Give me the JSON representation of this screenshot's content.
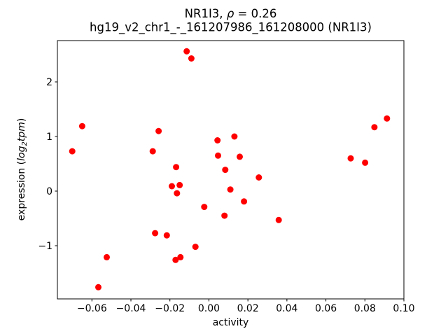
{
  "chart_data": {
    "type": "scatter",
    "title": {
      "gene": "NR1I3, ",
      "rho": "ρ",
      "rho_value": " = 0.26"
    },
    "subtitle": "hg19_v2_chr1_-_161207986_161208000 (NR1I3)",
    "xlabel": "activity",
    "ylabel": {
      "prefix": "expression (",
      "log": "log",
      "sub": "2",
      "tpm": "tpm",
      "suffix": ")"
    },
    "xlim": [
      -0.0777,
      0.1
    ],
    "ylim": [
      -1.9744,
      2.7564
    ],
    "xtick_values": [
      -0.06,
      -0.04,
      -0.02,
      0.0,
      0.02,
      0.04,
      0.06,
      0.08,
      0.1
    ],
    "xtick_labels": [
      "−0.06",
      "−0.04",
      "−0.02",
      "0.00",
      "0.02",
      "0.04",
      "0.06",
      "0.08",
      "0.10"
    ],
    "ytick_values": [
      -1,
      0,
      1,
      2
    ],
    "ytick_labels": [
      "−1",
      "0",
      "1",
      "2"
    ],
    "grid": false,
    "legend": null,
    "marker": {
      "color": "#ff0000",
      "radius_px": 4.5
    },
    "points": [
      [
        -0.0114,
        2.56
      ],
      [
        -0.009,
        2.43
      ],
      [
        -0.065,
        1.19
      ],
      [
        -0.0701,
        0.73
      ],
      [
        -0.0258,
        1.1
      ],
      [
        -0.0288,
        0.73
      ],
      [
        0.0044,
        0.93
      ],
      [
        0.0047,
        0.65
      ],
      [
        -0.0168,
        0.44
      ],
      [
        0.0084,
        0.39
      ],
      [
        0.0131,
        1.0
      ],
      [
        0.0158,
        0.63
      ],
      [
        0.0849,
        1.17
      ],
      [
        0.0913,
        1.33
      ],
      [
        0.0727,
        0.6
      ],
      [
        0.0801,
        0.52
      ],
      [
        -0.019,
        0.09
      ],
      [
        -0.015,
        0.11
      ],
      [
        -0.0164,
        -0.04
      ],
      [
        -0.0024,
        -0.29
      ],
      [
        0.008,
        -0.45
      ],
      [
        -0.0276,
        -0.77
      ],
      [
        -0.0216,
        -0.81
      ],
      [
        -0.0069,
        -1.02
      ],
      [
        -0.0171,
        -1.26
      ],
      [
        -0.0146,
        -1.21
      ],
      [
        -0.0524,
        -1.21
      ],
      [
        -0.0567,
        -1.76
      ],
      [
        0.0256,
        0.25
      ],
      [
        0.018,
        -0.19
      ],
      [
        0.0358,
        -0.53
      ],
      [
        0.011,
        0.03
      ]
    ],
    "frame_color": "#000000",
    "background_color": "#ffffff"
  }
}
